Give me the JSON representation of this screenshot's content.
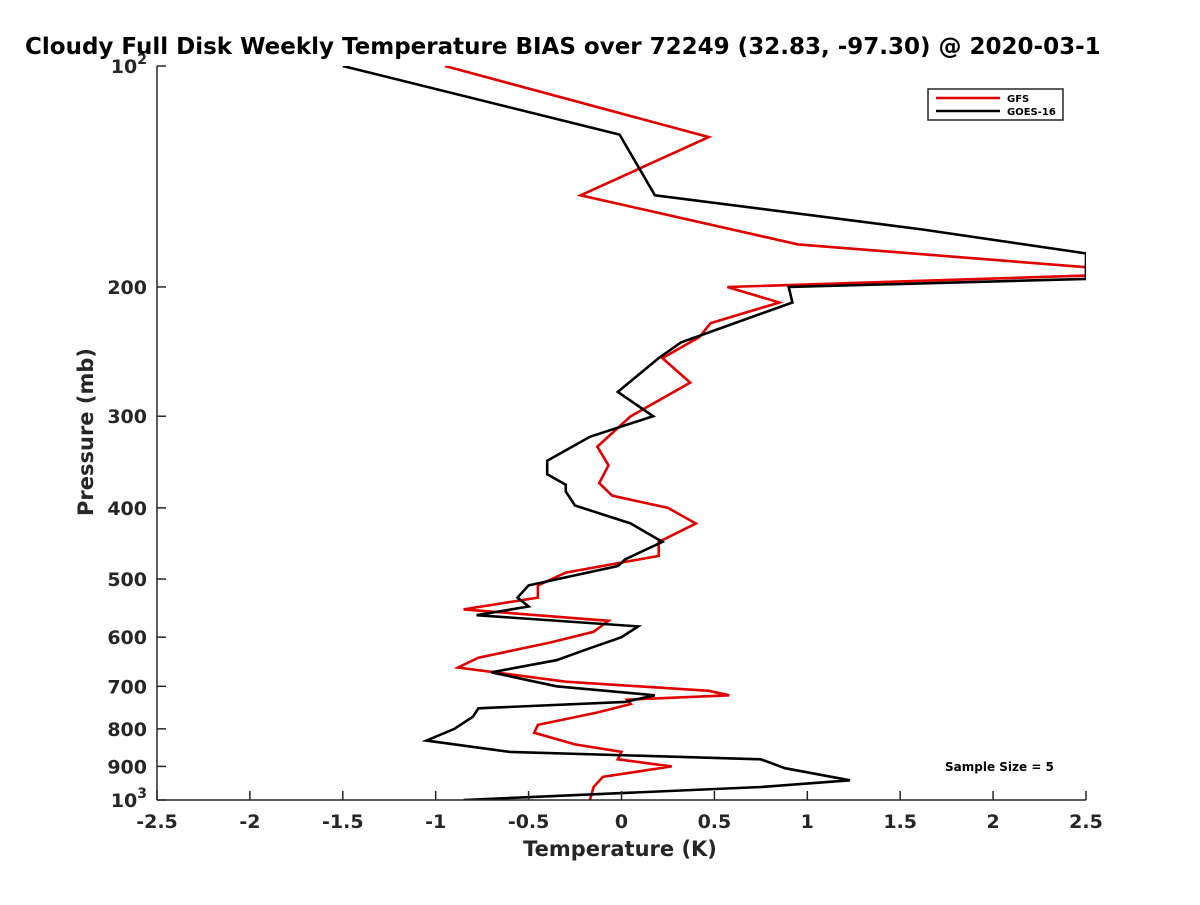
{
  "chart_data": {
    "type": "line",
    "title": "Cloudy Full Disk Weekly Temperature BIAS over 72249 (32.83, -97.30) @ 2020-03-1",
    "xlabel": "Temperature (K)",
    "ylabel": "Pressure (mb)",
    "xlim": [
      -2.5,
      2.5
    ],
    "ylim": [
      100,
      1000
    ],
    "yscale": "log",
    "y_reversed": true,
    "x_ticks": [
      {
        "value": -2.5,
        "label": "-2.5"
      },
      {
        "value": -2,
        "label": "-2"
      },
      {
        "value": -1.5,
        "label": "-1.5"
      },
      {
        "value": -1,
        "label": "-1"
      },
      {
        "value": -0.5,
        "label": "-0.5"
      },
      {
        "value": 0,
        "label": "0"
      },
      {
        "value": 0.5,
        "label": "0.5"
      },
      {
        "value": 1,
        "label": "1"
      },
      {
        "value": 1.5,
        "label": "1.5"
      },
      {
        "value": 2,
        "label": "2"
      },
      {
        "value": 2.5,
        "label": "2.5"
      }
    ],
    "y_ticks": [
      {
        "value": 100,
        "label": "10",
        "sup": "2"
      },
      {
        "value": 200,
        "label": "200"
      },
      {
        "value": 300,
        "label": "300"
      },
      {
        "value": 400,
        "label": "400"
      },
      {
        "value": 500,
        "label": "500"
      },
      {
        "value": 600,
        "label": "600"
      },
      {
        "value": 700,
        "label": "700"
      },
      {
        "value": 800,
        "label": "800"
      },
      {
        "value": 900,
        "label": "900"
      },
      {
        "value": 1000,
        "label": "10",
        "sup": "3"
      }
    ],
    "grid": false,
    "legend": {
      "position": "top-right"
    },
    "annotation": "Sample Size = 5",
    "series": [
      {
        "name": "GFS",
        "color": "#e00000",
        "points": [
          [
            -0.95,
            100
          ],
          [
            0.47,
            125
          ],
          [
            -0.22,
            150
          ],
          [
            0.95,
            175
          ],
          [
            2.5,
            188
          ],
          [
            2.5,
            193
          ],
          [
            0.57,
            200
          ],
          [
            0.85,
            210
          ],
          [
            0.48,
            224
          ],
          [
            0.42,
            234
          ],
          [
            0.22,
            250
          ],
          [
            0.37,
            270
          ],
          [
            0.05,
            300
          ],
          [
            -0.13,
            330
          ],
          [
            -0.07,
            350
          ],
          [
            -0.12,
            370
          ],
          [
            -0.05,
            385
          ],
          [
            0.25,
            400
          ],
          [
            0.4,
            420
          ],
          [
            0.2,
            445
          ],
          [
            0.2,
            465
          ],
          [
            -0.3,
            490
          ],
          [
            -0.45,
            510
          ],
          [
            -0.45,
            530
          ],
          [
            -0.85,
            550
          ],
          [
            -0.07,
            570
          ],
          [
            -0.15,
            590
          ],
          [
            -0.38,
            610
          ],
          [
            -0.77,
            640
          ],
          [
            -0.88,
            660
          ],
          [
            -0.3,
            690
          ],
          [
            0.47,
            710
          ],
          [
            0.58,
            720
          ],
          [
            0.03,
            730
          ],
          [
            0.05,
            740
          ],
          [
            -0.13,
            760
          ],
          [
            -0.45,
            790
          ],
          [
            -0.47,
            810
          ],
          [
            -0.25,
            840
          ],
          [
            0.0,
            860
          ],
          [
            -0.02,
            880
          ],
          [
            0.27,
            900
          ],
          [
            -0.1,
            930
          ],
          [
            -0.15,
            960
          ],
          [
            -0.17,
            1000
          ]
        ]
      },
      {
        "name": "GOES-16",
        "color": "#000000",
        "points": [
          [
            -1.5,
            100
          ],
          [
            -0.01,
            124
          ],
          [
            0.18,
            150
          ],
          [
            1.62,
            167
          ],
          [
            2.5,
            180
          ],
          [
            2.5,
            195
          ],
          [
            0.9,
            200
          ],
          [
            0.92,
            210
          ],
          [
            0.32,
            238
          ],
          [
            0.2,
            250
          ],
          [
            -0.02,
            278
          ],
          [
            0.17,
            300
          ],
          [
            -0.17,
            320
          ],
          [
            -0.4,
            345
          ],
          [
            -0.4,
            360
          ],
          [
            -0.3,
            372
          ],
          [
            -0.3,
            380
          ],
          [
            -0.25,
            397
          ],
          [
            0.05,
            420
          ],
          [
            0.22,
            445
          ],
          [
            0.02,
            470
          ],
          [
            -0.02,
            480
          ],
          [
            -0.5,
            510
          ],
          [
            -0.56,
            530
          ],
          [
            -0.5,
            545
          ],
          [
            -0.78,
            560
          ],
          [
            0.09,
            580
          ],
          [
            0.0,
            600
          ],
          [
            -0.2,
            625
          ],
          [
            -0.35,
            645
          ],
          [
            -0.7,
            670
          ],
          [
            -0.35,
            700
          ],
          [
            0.18,
            720
          ],
          [
            0.02,
            735
          ],
          [
            -0.77,
            750
          ],
          [
            -0.8,
            770
          ],
          [
            -0.9,
            800
          ],
          [
            -1.05,
            830
          ],
          [
            -0.6,
            860
          ],
          [
            0.75,
            880
          ],
          [
            0.88,
            905
          ],
          [
            1.23,
            940
          ],
          [
            0.75,
            960
          ],
          [
            -0.85,
            1000
          ]
        ]
      }
    ]
  }
}
